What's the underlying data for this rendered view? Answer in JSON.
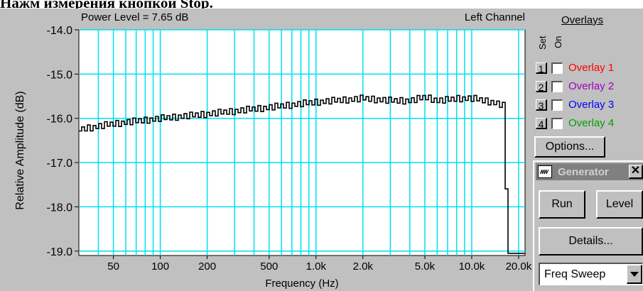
{
  "caption": "Нажм измерения кнопкой Stop.",
  "plot": {
    "power_label": "Power Level = 7.65 dB",
    "channel_label": "Left Channel"
  },
  "chart_data": {
    "type": "line",
    "title": "",
    "xlabel": "Frequency (Hz)",
    "ylabel": "Relative Amplitude (dB)",
    "x_scale": "log",
    "xlim": [
      30,
      22000
    ],
    "ylim": [
      -19.1,
      -14.0
    ],
    "grid": true,
    "y_ticks": [
      {
        "value": -14.0,
        "label": "-14.0"
      },
      {
        "value": -15.0,
        "label": "-15.0"
      },
      {
        "value": -16.0,
        "label": "-16.0"
      },
      {
        "value": -17.0,
        "label": "-17.0"
      },
      {
        "value": -18.0,
        "label": "-18.0"
      },
      {
        "value": -19.0,
        "label": "-19.0"
      }
    ],
    "x_ticks": [
      {
        "value": 50,
        "label": "50"
      },
      {
        "value": 100,
        "label": "100"
      },
      {
        "value": 200,
        "label": "200"
      },
      {
        "value": 500,
        "label": "500"
      },
      {
        "value": 1000,
        "label": "1.0k"
      },
      {
        "value": 2000,
        "label": "2.0k"
      },
      {
        "value": 5000,
        "label": "5.0k"
      },
      {
        "value": 10000,
        "label": "10.0k"
      },
      {
        "value": 20000,
        "label": "20.0k"
      }
    ],
    "x_minor_gridlines": [
      40,
      60,
      70,
      80,
      90,
      300,
      400,
      600,
      700,
      800,
      900,
      3000,
      4000,
      6000,
      7000,
      8000,
      9000
    ],
    "series": [
      {
        "color": "#000000",
        "x": [
          30,
          50,
          100,
          200,
          500,
          1000,
          2000,
          3000,
          4000,
          5000,
          6000,
          7000,
          8000,
          9000,
          10000,
          12000,
          14000,
          15500,
          16200,
          16500,
          17000,
          22000
        ],
        "y": [
          -16.25,
          -16.12,
          -16.0,
          -15.9,
          -15.75,
          -15.63,
          -15.55,
          -15.6,
          -15.6,
          -15.52,
          -15.6,
          -15.58,
          -15.55,
          -15.55,
          -15.55,
          -15.6,
          -15.65,
          -15.7,
          -15.75,
          -18.6,
          -19.05,
          -19.05
        ]
      }
    ],
    "legend": "none"
  },
  "overlays": {
    "title": "Overlays",
    "set_header": "Set",
    "on_header": "On",
    "items": [
      {
        "num": "1",
        "label": "Overlay 1",
        "color": "#ff0000"
      },
      {
        "num": "2",
        "label": "Overlay 2",
        "color": "#a000c0"
      },
      {
        "num": "3",
        "label": "Overlay 3",
        "color": "#0000ff"
      },
      {
        "num": "4",
        "label": "Overlay 4",
        "color": "#00a000"
      }
    ],
    "options_label": "Options..."
  },
  "generator": {
    "title": "Generator",
    "run_label": "Run",
    "level_label": "Level",
    "details_label": "Details...",
    "mode_value": "Freq Sweep"
  }
}
